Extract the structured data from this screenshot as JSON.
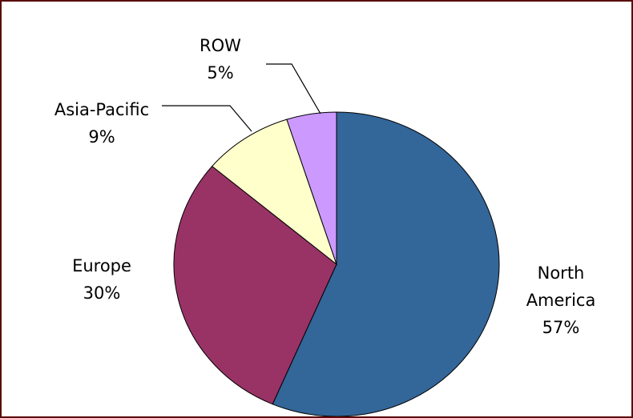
{
  "chart_data": {
    "type": "pie",
    "categories": [
      "North America",
      "Europe",
      "Asia-Pacific",
      "ROW"
    ],
    "values": [
      57,
      30,
      9,
      5
    ],
    "value_labels": [
      "57%",
      "30%",
      "9%",
      "5%"
    ],
    "colors": [
      "#336699",
      "#993366",
      "#ffffcc",
      "#cc99ff"
    ]
  }
}
